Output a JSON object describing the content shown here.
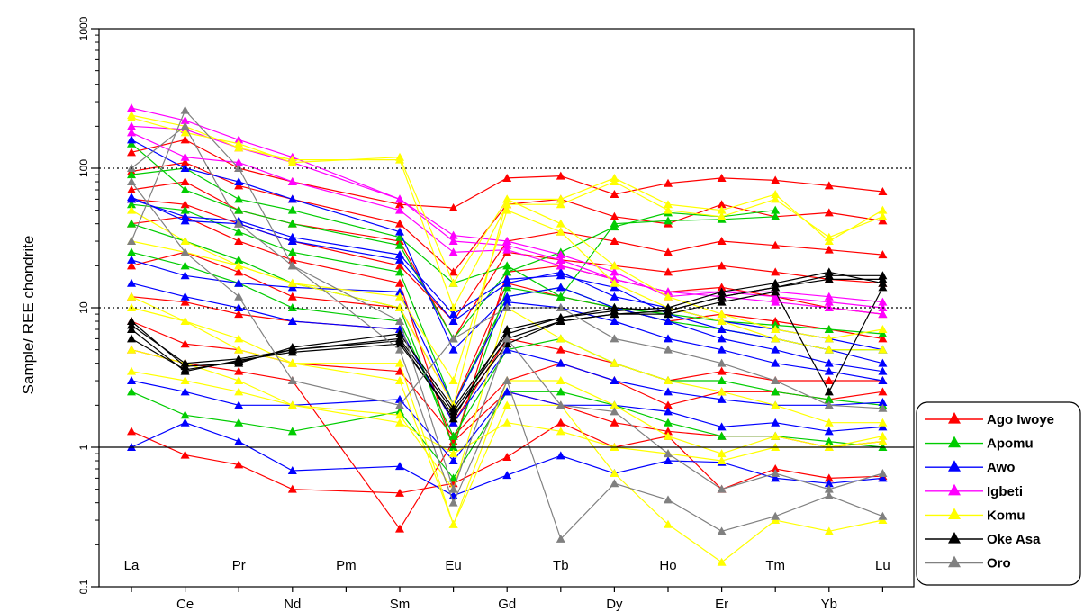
{
  "chart_data": {
    "type": "line",
    "title": "",
    "xlabel": "",
    "ylabel": "Sample/ REE chondrite",
    "y_scale": "log",
    "ylim": [
      0.1,
      1000
    ],
    "y_ticks": [
      "0.1",
      "1",
      "10",
      "100",
      "1000"
    ],
    "grid": "dotted reference lines at 10 and 100, solid reference line at 1",
    "legend_placement": "right",
    "categories": [
      "La",
      "Ce",
      "Pr",
      "Nd",
      "Pm",
      "Sm",
      "Eu",
      "Gd",
      "Tb",
      "Dy",
      "Ho",
      "Er",
      "Tm",
      "Yb",
      "Lu"
    ],
    "x_labels_inside": [
      "La",
      "Pr",
      "Pm",
      "Eu",
      "Tb",
      "Ho",
      "Tm",
      "Lu"
    ],
    "x_labels_below": [
      "Ce",
      "Nd",
      "Sm",
      "Gd",
      "Dy",
      "Er",
      "Yb"
    ],
    "groups": [
      {
        "name": "Ago Iwoye",
        "color": "#ff0000",
        "samples": [
          [
            130,
            160,
            100,
            80,
            null,
            55,
            52,
            85,
            88,
            65,
            78,
            85,
            82,
            75,
            68
          ],
          [
            95,
            110,
            75,
            60,
            null,
            40,
            18,
            55,
            60,
            45,
            40,
            55,
            45,
            48,
            42
          ],
          [
            60,
            55,
            40,
            30,
            null,
            20,
            8,
            30,
            35,
            30,
            25,
            30,
            28,
            26,
            24
          ],
          [
            12,
            11,
            9,
            8,
            null,
            7,
            1.5,
            6,
            5,
            4,
            3,
            3.5,
            3,
            3,
            3
          ],
          [
            8,
            5.5,
            5,
            4,
            null,
            3.5,
            1.2,
            3,
            4,
            3,
            2,
            2.5,
            2.5,
            2.2,
            2.5
          ],
          [
            1.3,
            0.88,
            0.75,
            0.5,
            null,
            0.47,
            0.55,
            0.85,
            1.5,
            1.0,
            1.2,
            0.5,
            0.7,
            0.6,
            0.62
          ],
          [
            5,
            4,
            3.5,
            3,
            null,
            0.26,
            1.1,
            2.5,
            2,
            1.5,
            1.3,
            1.2,
            1.2,
            1,
            1.1
          ],
          [
            20,
            25,
            18,
            12,
            null,
            10,
            2,
            15,
            12,
            10,
            8,
            9,
            8,
            7,
            6
          ],
          [
            40,
            45,
            30,
            22,
            null,
            15,
            1,
            18,
            20,
            16,
            13,
            14,
            12,
            10,
            9
          ],
          [
            70,
            80,
            50,
            40,
            null,
            30,
            6,
            25,
            22,
            20,
            18,
            20,
            18,
            16,
            15
          ]
        ]
      },
      {
        "name": "Apomu",
        "color": "#00cc00",
        "samples": [
          [
            150,
            70,
            50,
            40,
            null,
            28,
            6,
            18,
            25,
            38,
            48,
            45,
            50,
            0,
            0
          ],
          [
            90,
            100,
            60,
            50,
            null,
            32,
            15,
            20,
            12,
            40,
            42,
            43,
            45,
            null,
            null
          ],
          [
            40,
            30,
            22,
            15,
            null,
            10,
            1,
            14,
            12,
            10,
            8,
            7,
            6,
            5,
            5
          ],
          [
            25,
            20,
            15,
            10,
            null,
            8,
            1.2,
            5,
            6,
            4,
            3,
            3,
            2.5,
            2.2,
            2
          ],
          [
            2.5,
            1.7,
            1.5,
            1.3,
            null,
            1.8,
            0.6,
            2.5,
            2.5,
            2,
            1.5,
            1.2,
            1.2,
            1.1,
            1
          ],
          [
            55,
            50,
            35,
            25,
            null,
            18,
            2,
            12,
            14,
            10,
            9,
            8,
            7.5,
            7,
            6.5
          ]
        ]
      },
      {
        "name": "Awo",
        "color": "#0000ff",
        "samples": [
          [
            62,
            42,
            40,
            30,
            null,
            22,
            8,
            15,
            18,
            12,
            10,
            8,
            7,
            6,
            5
          ],
          [
            60,
            45,
            42,
            32,
            null,
            24,
            9,
            16,
            17,
            14,
            9,
            7,
            6,
            5,
            4
          ],
          [
            22,
            17,
            15,
            14,
            null,
            13,
            2,
            11,
            10,
            8,
            6,
            5,
            4,
            3.5,
            3
          ],
          [
            15,
            12,
            10,
            8,
            null,
            7,
            1.5,
            5,
            4,
            3,
            2.5,
            2.2,
            2,
            2,
            2.1
          ],
          [
            1.0,
            1.5,
            1.1,
            0.68,
            null,
            0.73,
            0.45,
            0.63,
            0.87,
            0.65,
            0.8,
            0.78,
            0.6,
            0.55,
            0.6
          ],
          [
            3,
            2.5,
            2,
            2,
            null,
            2.2,
            0.8,
            2.5,
            2,
            2,
            1.8,
            1.4,
            1.5,
            1.3,
            1.4
          ],
          [
            160,
            100,
            80,
            60,
            null,
            35,
            5,
            12,
            14,
            10,
            8,
            6,
            5,
            4,
            3.5
          ]
        ]
      },
      {
        "name": "Igbeti",
        "color": "#ff00ff",
        "samples": [
          [
            270,
            220,
            160,
            120,
            null,
            60,
            30,
            28,
            22,
            16,
            13,
            13,
            13,
            12,
            11
          ],
          [
            200,
            190,
            140,
            110,
            null,
            60,
            33,
            30,
            24,
            18,
            12,
            13,
            12,
            11,
            10
          ],
          [
            180,
            120,
            110,
            80,
            null,
            50,
            25,
            26,
            20,
            16,
            13,
            12,
            11,
            10,
            9
          ]
        ]
      },
      {
        "name": "Komu",
        "color": "#ffff00",
        "samples": [
          [
            230,
            180,
            150,
            110,
            null,
            120,
            15,
            60,
            60,
            85,
            55,
            50,
            65,
            30,
            50
          ],
          [
            240,
            200,
            140,
            115,
            null,
            115,
            10,
            55,
            55,
            80,
            50,
            45,
            60,
            32,
            45
          ],
          [
            12,
            8,
            6,
            4,
            null,
            4,
            0.28,
            3,
            3,
            2,
            1.2,
            0.9,
            1.2,
            1,
            1.1
          ],
          [
            10,
            8,
            5,
            4,
            null,
            3,
            0.28,
            2,
            2,
            0.65,
            0.28,
            0.15,
            0.3,
            0.25,
            0.3
          ],
          [
            3.5,
            3,
            2.5,
            2,
            null,
            1.5,
            0.9,
            1.5,
            1.3,
            1,
            0.9,
            0.8,
            1,
            1,
            1.2
          ],
          [
            30,
            25,
            20,
            15,
            null,
            12,
            3,
            50,
            35,
            15,
            10,
            8,
            6,
            5,
            5
          ],
          [
            50,
            30,
            20,
            15,
            null,
            10,
            2,
            60,
            40,
            20,
            12,
            9,
            7,
            6,
            7
          ],
          [
            5,
            4,
            3,
            2,
            null,
            1.7,
            0.5,
            10,
            6,
            4,
            3,
            2.5,
            2,
            1.5,
            1.5
          ]
        ]
      },
      {
        "name": "Oke Asa",
        "color": "#000000",
        "samples": [
          [
            7.5,
            4,
            4.3,
            5,
            null,
            6,
            1.8,
            6,
            8,
            9,
            9.5,
            12,
            14,
            17,
            17
          ],
          [
            8,
            3.8,
            4,
            5.2,
            null,
            6.5,
            1.9,
            6.5,
            8.5,
            9.5,
            10,
            13,
            15,
            18,
            15
          ],
          [
            7,
            3.5,
            4.2,
            4.8,
            null,
            5.5,
            1.7,
            5.5,
            8,
            9,
            9,
            11,
            13,
            2.5,
            14
          ],
          [
            6,
            3.6,
            4.1,
            5,
            null,
            5.8,
            1.6,
            7,
            8.5,
            10,
            9.5,
            12,
            14,
            16,
            16
          ]
        ]
      },
      {
        "name": "Oro",
        "color": "#808080",
        "samples": [
          [
            30,
            260,
            100,
            20,
            null,
            5,
            0.4,
            3,
            0.22,
            0.55,
            0.42,
            0.25,
            0.32,
            0.45,
            0.32
          ],
          [
            100,
            200,
            40,
            20,
            null,
            8,
            0.5,
            6,
            2,
            1.8,
            0.9,
            0.5,
            0.65,
            0.5,
            0.65
          ],
          [
            80,
            25,
            12,
            3,
            null,
            2,
            6,
            10,
            10,
            6,
            5,
            4,
            3,
            2,
            1.9
          ]
        ]
      }
    ]
  }
}
